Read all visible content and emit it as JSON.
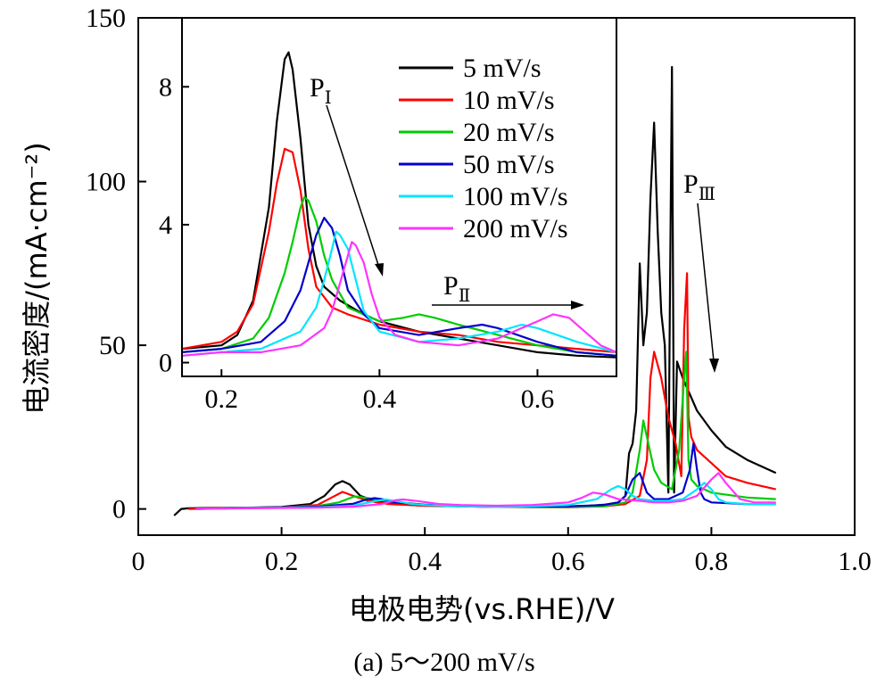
{
  "chart_data": [
    {
      "type": "line",
      "role": "main",
      "xlabel": "电极电势(vs.RHE)/V",
      "ylabel": "电流密度/(mA·cm⁻²)",
      "xlim": [
        0,
        1.0
      ],
      "ylim": [
        -8,
        150
      ],
      "xticks": [
        0,
        0.2,
        0.4,
        0.6,
        0.8,
        1.0
      ],
      "xtick_labels": [
        "0",
        "0.2",
        "0.4",
        "0.6",
        "0.8",
        "1.0"
      ],
      "yticks": [
        0,
        50,
        100,
        150
      ],
      "ytick_labels": [
        "0",
        "50",
        "100",
        "150"
      ],
      "grid": false,
      "series": [
        {
          "name": "5 mV/s",
          "color": "#000000",
          "x": [
            0.05,
            0.06,
            0.07,
            0.1,
            0.15,
            0.2,
            0.24,
            0.26,
            0.275,
            0.285,
            0.295,
            0.31,
            0.33,
            0.36,
            0.4,
            0.45,
            0.5,
            0.55,
            0.6,
            0.63,
            0.65,
            0.67,
            0.68,
            0.685,
            0.69,
            0.695,
            0.7,
            0.705,
            0.71,
            0.715,
            0.72,
            0.725,
            0.73,
            0.735,
            0.74,
            0.742,
            0.745,
            0.748,
            0.752,
            0.76,
            0.78,
            0.8,
            0.82,
            0.85,
            0.89
          ],
          "y": [
            -2,
            0,
            0.2,
            0.3,
            0.4,
            0.6,
            1.5,
            4,
            7.5,
            8.5,
            7.5,
            4,
            2.5,
            1.5,
            1,
            0.8,
            0.6,
            0.6,
            0.8,
            1,
            1.3,
            2,
            4,
            17,
            20,
            30,
            75,
            50,
            60,
            95,
            118,
            85,
            60,
            50,
            5,
            60,
            135,
            5,
            45,
            40,
            30,
            24,
            19,
            15,
            11
          ]
        },
        {
          "name": "10 mV/s",
          "color": "#ff0000",
          "x": [
            0.07,
            0.1,
            0.15,
            0.2,
            0.25,
            0.27,
            0.285,
            0.3,
            0.32,
            0.35,
            0.4,
            0.5,
            0.6,
            0.65,
            0.68,
            0.7,
            0.71,
            0.715,
            0.72,
            0.73,
            0.74,
            0.75,
            0.758,
            0.762,
            0.766,
            0.768,
            0.772,
            0.78,
            0.8,
            0.82,
            0.85,
            0.89
          ],
          "y": [
            0,
            0.2,
            0.4,
            0.5,
            1.2,
            3.5,
            5.2,
            4,
            2.5,
            1.5,
            1,
            0.6,
            0.5,
            0.8,
            1.5,
            4,
            15,
            40,
            48,
            40,
            28,
            20,
            10,
            55,
            72,
            28,
            22,
            18,
            14,
            10,
            8,
            6
          ]
        },
        {
          "name": "20 mV/s",
          "color": "#00cc00",
          "x": [
            0.08,
            0.15,
            0.2,
            0.25,
            0.28,
            0.3,
            0.305,
            0.32,
            0.35,
            0.4,
            0.45,
            0.5,
            0.55,
            0.6,
            0.65,
            0.68,
            0.69,
            0.7,
            0.705,
            0.71,
            0.72,
            0.73,
            0.745,
            0.755,
            0.762,
            0.765,
            0.768,
            0.772,
            0.78,
            0.8,
            0.85,
            0.89
          ],
          "y": [
            0,
            0.3,
            0.5,
            0.9,
            2,
            3.7,
            3.8,
            3.3,
            2.3,
            1.3,
            1,
            0.7,
            0.6,
            0.6,
            0.8,
            2,
            5,
            18,
            27,
            22,
            12,
            8,
            6,
            18,
            40,
            48,
            15,
            9,
            7,
            5,
            3.5,
            3
          ]
        },
        {
          "name": "50 mV/s",
          "color": "#0000cc",
          "x": [
            0.08,
            0.15,
            0.2,
            0.25,
            0.3,
            0.32,
            0.33,
            0.34,
            0.36,
            0.4,
            0.45,
            0.5,
            0.55,
            0.6,
            0.65,
            0.67,
            0.68,
            0.69,
            0.7,
            0.705,
            0.71,
            0.72,
            0.74,
            0.76,
            0.77,
            0.775,
            0.78,
            0.785,
            0.79,
            0.8,
            0.85,
            0.89
          ],
          "y": [
            0,
            0.3,
            0.5,
            0.7,
            1.6,
            3,
            3.3,
            3,
            2,
            1.3,
            1,
            0.8,
            0.7,
            0.8,
            1.2,
            2,
            4,
            9,
            11,
            8,
            5,
            3,
            3,
            5,
            12,
            20,
            12,
            5,
            3,
            2,
            1.5,
            1.5
          ]
        },
        {
          "name": "100 mV/s",
          "color": "#00e5ff",
          "x": [
            0.08,
            0.15,
            0.2,
            0.25,
            0.3,
            0.33,
            0.345,
            0.36,
            0.38,
            0.4,
            0.45,
            0.5,
            0.55,
            0.6,
            0.64,
            0.66,
            0.67,
            0.68,
            0.69,
            0.7,
            0.72,
            0.74,
            0.76,
            0.78,
            0.79,
            0.8,
            0.81,
            0.82,
            0.85,
            0.89
          ],
          "y": [
            0,
            0.3,
            0.4,
            0.5,
            1,
            2.4,
            2.9,
            2.4,
            1.6,
            1.2,
            0.8,
            0.6,
            0.8,
            1.2,
            3,
            6,
            7,
            6,
            4,
            3,
            2.5,
            2.5,
            3,
            6,
            8,
            6,
            3,
            2,
            1.5,
            1.5
          ]
        },
        {
          "name": "200 mV/s",
          "color": "#ff33ff",
          "x": [
            0.08,
            0.15,
            0.2,
            0.25,
            0.3,
            0.34,
            0.36,
            0.37,
            0.39,
            0.42,
            0.45,
            0.5,
            0.55,
            0.6,
            0.62,
            0.635,
            0.65,
            0.67,
            0.7,
            0.72,
            0.74,
            0.76,
            0.78,
            0.8,
            0.81,
            0.82,
            0.84,
            0.86,
            0.89
          ],
          "y": [
            0,
            0.2,
            0.3,
            0.4,
            0.7,
            1.5,
            2.7,
            2.9,
            2.4,
            1.5,
            1.2,
            1,
            1.2,
            2,
            3.5,
            5,
            4.5,
            3,
            2.5,
            2,
            2,
            2.5,
            4,
            9,
            11,
            8,
            3,
            2,
            2
          ]
        }
      ],
      "annotations": [
        {
          "text": "P",
          "subscript": "Ⅲ"
        }
      ]
    },
    {
      "type": "line",
      "role": "inset",
      "xlim": [
        0.15,
        0.7
      ],
      "ylim": [
        -0.4,
        10
      ],
      "xticks": [
        0.2,
        0.4,
        0.6
      ],
      "xtick_labels": [
        "0.2",
        "0.4",
        "0.6"
      ],
      "yticks": [
        0,
        4,
        8
      ],
      "ytick_labels": [
        "0",
        "4",
        "8"
      ],
      "grid": false,
      "legend_position": "top-right",
      "series": [
        {
          "name": "5 mV/s",
          "color": "#000000",
          "x": [
            0.15,
            0.2,
            0.22,
            0.24,
            0.26,
            0.27,
            0.28,
            0.285,
            0.29,
            0.3,
            0.31,
            0.32,
            0.33,
            0.35,
            0.38,
            0.4,
            0.45,
            0.5,
            0.55,
            0.6,
            0.65,
            0.7
          ],
          "y": [
            0.4,
            0.5,
            0.8,
            1.8,
            4.5,
            7,
            8.8,
            9,
            8.5,
            6.5,
            4,
            2.8,
            2.2,
            1.8,
            1.4,
            1.2,
            0.9,
            0.7,
            0.5,
            0.3,
            0.2,
            0.15
          ]
        },
        {
          "name": "10 mV/s",
          "color": "#ff0000",
          "x": [
            0.15,
            0.2,
            0.22,
            0.24,
            0.26,
            0.27,
            0.28,
            0.29,
            0.3,
            0.31,
            0.32,
            0.34,
            0.36,
            0.4,
            0.45,
            0.5,
            0.55,
            0.6,
            0.65,
            0.7
          ],
          "y": [
            0.4,
            0.6,
            0.9,
            1.7,
            3.8,
            5.2,
            6.2,
            6.1,
            5,
            3.3,
            2.2,
            1.6,
            1.4,
            1.1,
            0.9,
            0.8,
            0.6,
            0.5,
            0.4,
            0.3
          ]
        },
        {
          "name": "20 mV/s",
          "color": "#00cc00",
          "x": [
            0.15,
            0.2,
            0.24,
            0.26,
            0.28,
            0.29,
            0.3,
            0.305,
            0.31,
            0.32,
            0.33,
            0.34,
            0.36,
            0.4,
            0.43,
            0.45,
            0.47,
            0.5,
            0.55,
            0.6,
            0.65,
            0.7
          ],
          "y": [
            0.3,
            0.4,
            0.7,
            1.3,
            2.6,
            3.5,
            4.5,
            4.8,
            4.7,
            4.1,
            3.1,
            2.4,
            1.6,
            1.2,
            1.3,
            1.4,
            1.3,
            1.1,
            0.8,
            0.5,
            0.3,
            0.2
          ]
        },
        {
          "name": "50 mV/s",
          "color": "#0000cc",
          "x": [
            0.15,
            0.2,
            0.25,
            0.28,
            0.3,
            0.31,
            0.32,
            0.33,
            0.34,
            0.35,
            0.36,
            0.38,
            0.4,
            0.45,
            0.5,
            0.53,
            0.55,
            0.6,
            0.65,
            0.7
          ],
          "y": [
            0.3,
            0.4,
            0.6,
            1.2,
            2.1,
            2.9,
            3.7,
            4.2,
            3.9,
            3.1,
            2.1,
            1.4,
            1,
            0.8,
            1,
            1.1,
            1,
            0.6,
            0.3,
            0.2
          ]
        },
        {
          "name": "100 mV/s",
          "color": "#00e5ff",
          "x": [
            0.15,
            0.2,
            0.25,
            0.3,
            0.32,
            0.33,
            0.34,
            0.345,
            0.35,
            0.36,
            0.37,
            0.38,
            0.4,
            0.45,
            0.5,
            0.55,
            0.58,
            0.6,
            0.65,
            0.7
          ],
          "y": [
            0.2,
            0.3,
            0.4,
            0.9,
            1.6,
            2.4,
            3.3,
            3.8,
            3.7,
            3.3,
            2.4,
            1.5,
            0.9,
            0.6,
            0.7,
            0.9,
            1.1,
            1,
            0.6,
            0.3
          ]
        },
        {
          "name": "200 mV/s",
          "color": "#ff33ff",
          "x": [
            0.15,
            0.2,
            0.25,
            0.3,
            0.33,
            0.34,
            0.35,
            0.36,
            0.365,
            0.37,
            0.38,
            0.39,
            0.4,
            0.42,
            0.45,
            0.5,
            0.55,
            0.58,
            0.6,
            0.62,
            0.64,
            0.66,
            0.68,
            0.7
          ],
          "y": [
            0.2,
            0.3,
            0.3,
            0.5,
            1,
            1.5,
            2.3,
            3.1,
            3.5,
            3.4,
            2.9,
            2,
            1.3,
            0.8,
            0.6,
            0.5,
            0.7,
            1,
            1.2,
            1.4,
            1.3,
            0.9,
            0.5,
            0.3
          ]
        }
      ],
      "annotations": [
        {
          "text": "P",
          "subscript": "Ⅰ"
        },
        {
          "text": "P",
          "subscript": "Ⅱ"
        }
      ]
    }
  ],
  "caption": "(a) 5～200 mV/s"
}
